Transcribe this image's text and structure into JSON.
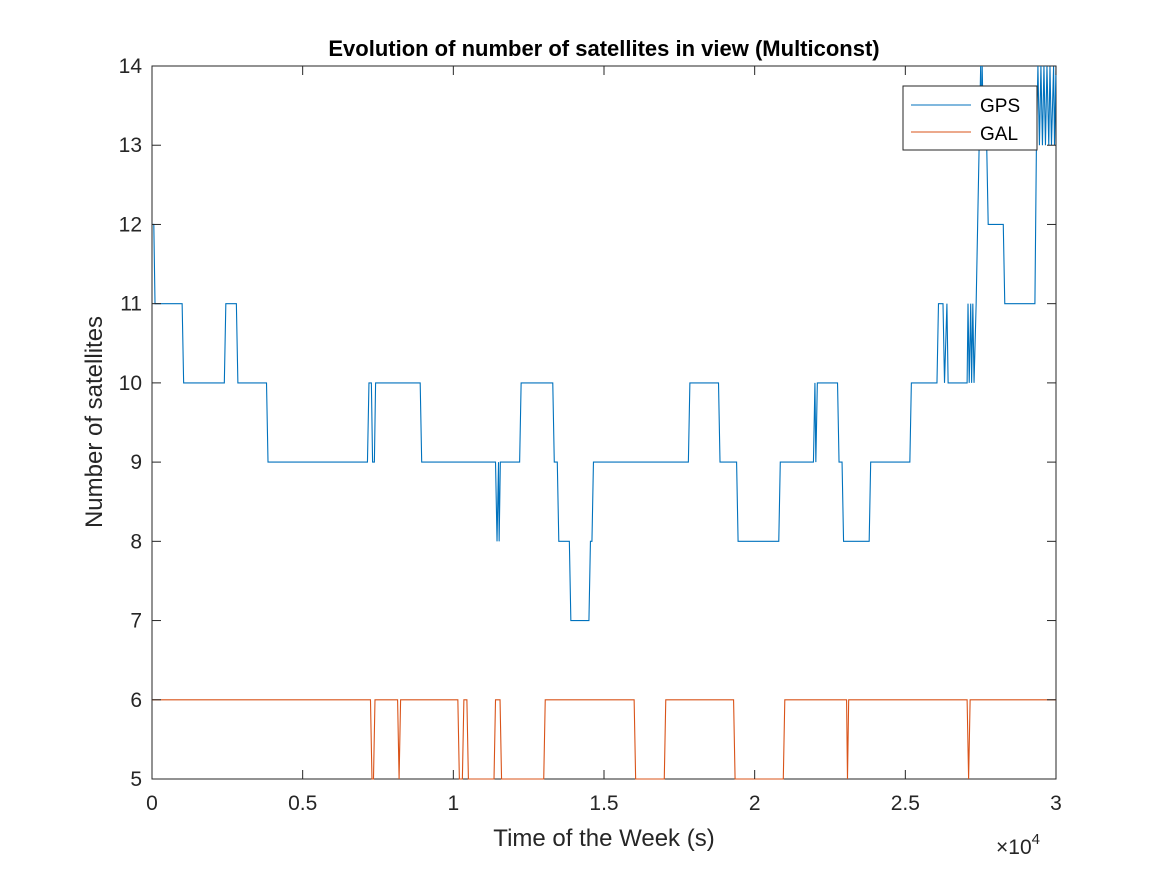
{
  "chart_data": {
    "type": "line",
    "title": "Evolution of number of satellites in view (Multiconst)",
    "xlabel": "Time of the Week (s)",
    "ylabel": "Number of satellites",
    "x_multiplier_label": "×10",
    "x_multiplier_exponent": "4",
    "xlim": [
      0,
      30000
    ],
    "ylim": [
      5,
      14
    ],
    "xticks": [
      0,
      5000,
      10000,
      15000,
      20000,
      25000,
      30000
    ],
    "xtick_labels": [
      "0",
      "0.5",
      "1",
      "1.5",
      "2",
      "2.5",
      "3"
    ],
    "yticks": [
      5,
      6,
      7,
      8,
      9,
      10,
      11,
      12,
      13,
      14
    ],
    "ytick_labels": [
      "5",
      "6",
      "7",
      "8",
      "9",
      "10",
      "11",
      "12",
      "13",
      "14"
    ],
    "grid": false,
    "legend_position": "top-right",
    "series": [
      {
        "name": "GPS",
        "color": "#0072BD",
        "points": [
          [
            0,
            12
          ],
          [
            60,
            12
          ],
          [
            100,
            11
          ],
          [
            1000,
            11
          ],
          [
            1050,
            10
          ],
          [
            2400,
            10
          ],
          [
            2450,
            11
          ],
          [
            2800,
            11
          ],
          [
            2850,
            10
          ],
          [
            3800,
            10
          ],
          [
            3850,
            9
          ],
          [
            7150,
            9
          ],
          [
            7200,
            10
          ],
          [
            7280,
            10
          ],
          [
            7320,
            9
          ],
          [
            7380,
            9
          ],
          [
            7420,
            10
          ],
          [
            8900,
            10
          ],
          [
            8950,
            9
          ],
          [
            11400,
            9
          ],
          [
            11450,
            8
          ],
          [
            11500,
            9
          ],
          [
            11520,
            8
          ],
          [
            11560,
            9
          ],
          [
            12200,
            9
          ],
          [
            12250,
            10
          ],
          [
            13300,
            10
          ],
          [
            13350,
            9
          ],
          [
            13450,
            9
          ],
          [
            13500,
            8
          ],
          [
            13850,
            8
          ],
          [
            13900,
            7
          ],
          [
            14500,
            7
          ],
          [
            14550,
            8
          ],
          [
            14600,
            8
          ],
          [
            14650,
            9
          ],
          [
            17800,
            9
          ],
          [
            17850,
            10
          ],
          [
            18800,
            10
          ],
          [
            18850,
            9
          ],
          [
            19400,
            9
          ],
          [
            19450,
            8
          ],
          [
            20800,
            8
          ],
          [
            20850,
            9
          ],
          [
            21950,
            9
          ],
          [
            22000,
            10
          ],
          [
            22030,
            9
          ],
          [
            22080,
            10
          ],
          [
            22750,
            10
          ],
          [
            22800,
            9
          ],
          [
            22900,
            9
          ],
          [
            22950,
            8
          ],
          [
            23800,
            8
          ],
          [
            23850,
            9
          ],
          [
            25150,
            9
          ],
          [
            25200,
            10
          ],
          [
            26050,
            10
          ],
          [
            26100,
            11
          ],
          [
            26250,
            11
          ],
          [
            26300,
            10
          ],
          [
            26380,
            11
          ],
          [
            26420,
            10
          ],
          [
            27050,
            10
          ],
          [
            27080,
            11
          ],
          [
            27120,
            10
          ],
          [
            27170,
            11
          ],
          [
            27200,
            10
          ],
          [
            27240,
            11
          ],
          [
            27280,
            10
          ],
          [
            27350,
            11
          ],
          [
            27400,
            12
          ],
          [
            27450,
            13
          ],
          [
            27500,
            14
          ],
          [
            27520,
            13
          ],
          [
            27550,
            14
          ],
          [
            27600,
            13
          ],
          [
            27700,
            13
          ],
          [
            27750,
            12
          ],
          [
            28250,
            12
          ],
          [
            28300,
            11
          ],
          [
            29300,
            11
          ],
          [
            29350,
            13
          ],
          [
            29400,
            14
          ],
          [
            29450,
            13
          ],
          [
            29500,
            14
          ],
          [
            29550,
            13
          ],
          [
            29600,
            14
          ],
          [
            29650,
            13
          ],
          [
            29700,
            14
          ],
          [
            29760,
            13
          ],
          [
            29800,
            14
          ],
          [
            29850,
            13
          ],
          [
            29920,
            14
          ],
          [
            29950,
            13
          ],
          [
            30000,
            14
          ]
        ]
      },
      {
        "name": "GAL",
        "color": "#D95319",
        "points": [
          [
            0,
            6
          ],
          [
            7250,
            6
          ],
          [
            7300,
            5
          ],
          [
            7350,
            5
          ],
          [
            7400,
            6
          ],
          [
            8150,
            6
          ],
          [
            8200,
            5
          ],
          [
            8250,
            6
          ],
          [
            10150,
            6
          ],
          [
            10200,
            5
          ],
          [
            10300,
            5
          ],
          [
            10350,
            6
          ],
          [
            10450,
            6
          ],
          [
            10500,
            5
          ],
          [
            11350,
            5
          ],
          [
            11400,
            6
          ],
          [
            11550,
            6
          ],
          [
            11600,
            5
          ],
          [
            13000,
            5
          ],
          [
            13050,
            6
          ],
          [
            16000,
            6
          ],
          [
            16050,
            5
          ],
          [
            17000,
            5
          ],
          [
            17050,
            6
          ],
          [
            19300,
            6
          ],
          [
            19350,
            5
          ],
          [
            20950,
            5
          ],
          [
            21000,
            6
          ],
          [
            23050,
            6
          ],
          [
            23080,
            5
          ],
          [
            23120,
            6
          ],
          [
            27050,
            6
          ],
          [
            27100,
            5
          ],
          [
            27150,
            6
          ],
          [
            30000,
            6
          ]
        ]
      }
    ]
  }
}
